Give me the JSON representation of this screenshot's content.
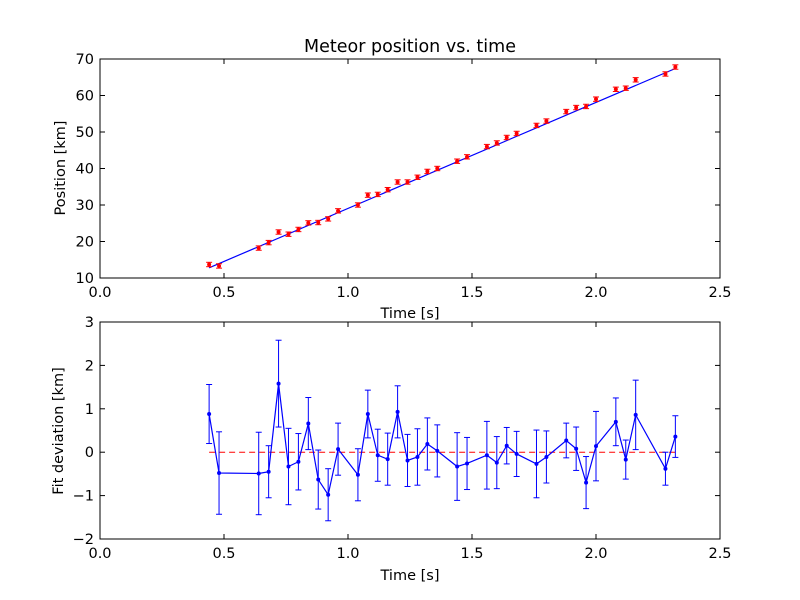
{
  "chart_data": [
    {
      "type": "scatter",
      "title": "Meteor position vs. time",
      "xlabel": "Time [s]",
      "ylabel": "Position [km]",
      "xlim": [
        0.0,
        2.5
      ],
      "ylim": [
        10,
        70
      ],
      "x_ticks": [
        "0.0",
        "0.5",
        "1.0",
        "1.5",
        "2.0",
        "2.5"
      ],
      "y_ticks": [
        "10",
        "20",
        "30",
        "40",
        "50",
        "60",
        "70"
      ],
      "grid": false,
      "series": [
        {
          "role": "measured",
          "color": "#ff0000",
          "marker": "dot",
          "error_bar": 0.6,
          "x": [
            0.44,
            0.48,
            0.64,
            0.68,
            0.72,
            0.76,
            0.8,
            0.84,
            0.88,
            0.92,
            0.96,
            1.04,
            1.08,
            1.12,
            1.16,
            1.2,
            1.24,
            1.28,
            1.32,
            1.36,
            1.44,
            1.48,
            1.56,
            1.6,
            1.64,
            1.68,
            1.76,
            1.8,
            1.88,
            1.92,
            1.96,
            2.0,
            2.08,
            2.12,
            2.16,
            2.28,
            2.32
          ],
          "y": [
            13.7,
            13.3,
            18.2,
            19.7,
            22.6,
            22.0,
            23.3,
            25.1,
            25.2,
            26.2,
            28.4,
            30.0,
            32.7,
            32.9,
            34.2,
            36.3,
            36.3,
            37.6,
            39.2,
            40.0,
            42.0,
            43.2,
            46.0,
            47.0,
            48.5,
            49.6,
            51.8,
            53.0,
            55.6,
            56.7,
            57.0,
            59.0,
            61.7,
            62.0,
            64.3,
            65.9,
            67.8
          ]
        },
        {
          "role": "fit",
          "color": "#0000ff",
          "line": "solid",
          "x": [
            0.44,
            2.32
          ],
          "y": [
            12.8,
            67.4
          ]
        }
      ]
    },
    {
      "type": "line",
      "xlabel": "Time [s]",
      "ylabel": "Fit deviation [km]",
      "xlim": [
        0.0,
        2.5
      ],
      "ylim": [
        -2,
        3
      ],
      "x_ticks": [
        "0.0",
        "0.5",
        "1.0",
        "1.5",
        "2.0",
        "2.5"
      ],
      "y_ticks": [
        "−2",
        "−1",
        "0",
        "1",
        "2",
        "3"
      ],
      "grid": false,
      "reference_line": {
        "y": 0,
        "color": "#ff0000",
        "style": "dashed",
        "x": [
          0.44,
          2.32
        ]
      },
      "series": [
        {
          "color": "#0000ff",
          "marker": "dot",
          "x": [
            0.44,
            0.48,
            0.64,
            0.68,
            0.72,
            0.76,
            0.8,
            0.84,
            0.88,
            0.92,
            0.96,
            1.04,
            1.08,
            1.12,
            1.16,
            1.2,
            1.24,
            1.28,
            1.32,
            1.36,
            1.44,
            1.48,
            1.56,
            1.6,
            1.64,
            1.68,
            1.76,
            1.8,
            1.88,
            1.92,
            1.96,
            2.0,
            2.08,
            2.12,
            2.16,
            2.28,
            2.32
          ],
          "y": [
            0.88,
            -0.48,
            -0.49,
            -0.45,
            1.58,
            -0.33,
            -0.22,
            0.66,
            -0.63,
            -0.98,
            0.07,
            -0.52,
            0.88,
            -0.07,
            -0.16,
            0.93,
            -0.19,
            -0.11,
            0.19,
            0.03,
            -0.33,
            -0.26,
            -0.07,
            -0.24,
            0.15,
            -0.04,
            -0.27,
            -0.11,
            0.27,
            0.08,
            -0.7,
            0.14,
            0.7,
            -0.17,
            0.86,
            -0.38,
            0.36
          ],
          "err": [
            0.68,
            0.95,
            0.95,
            0.6,
            1.0,
            0.88,
            0.65,
            0.6,
            0.68,
            0.6,
            0.6,
            0.6,
            0.55,
            0.6,
            0.6,
            0.6,
            0.6,
            0.65,
            0.6,
            0.6,
            0.78,
            0.6,
            0.78,
            0.6,
            0.42,
            0.52,
            0.78,
            0.6,
            0.4,
            0.5,
            0.6,
            0.8,
            0.55,
            0.45,
            0.8,
            0.38,
            0.48
          ]
        }
      ]
    }
  ]
}
